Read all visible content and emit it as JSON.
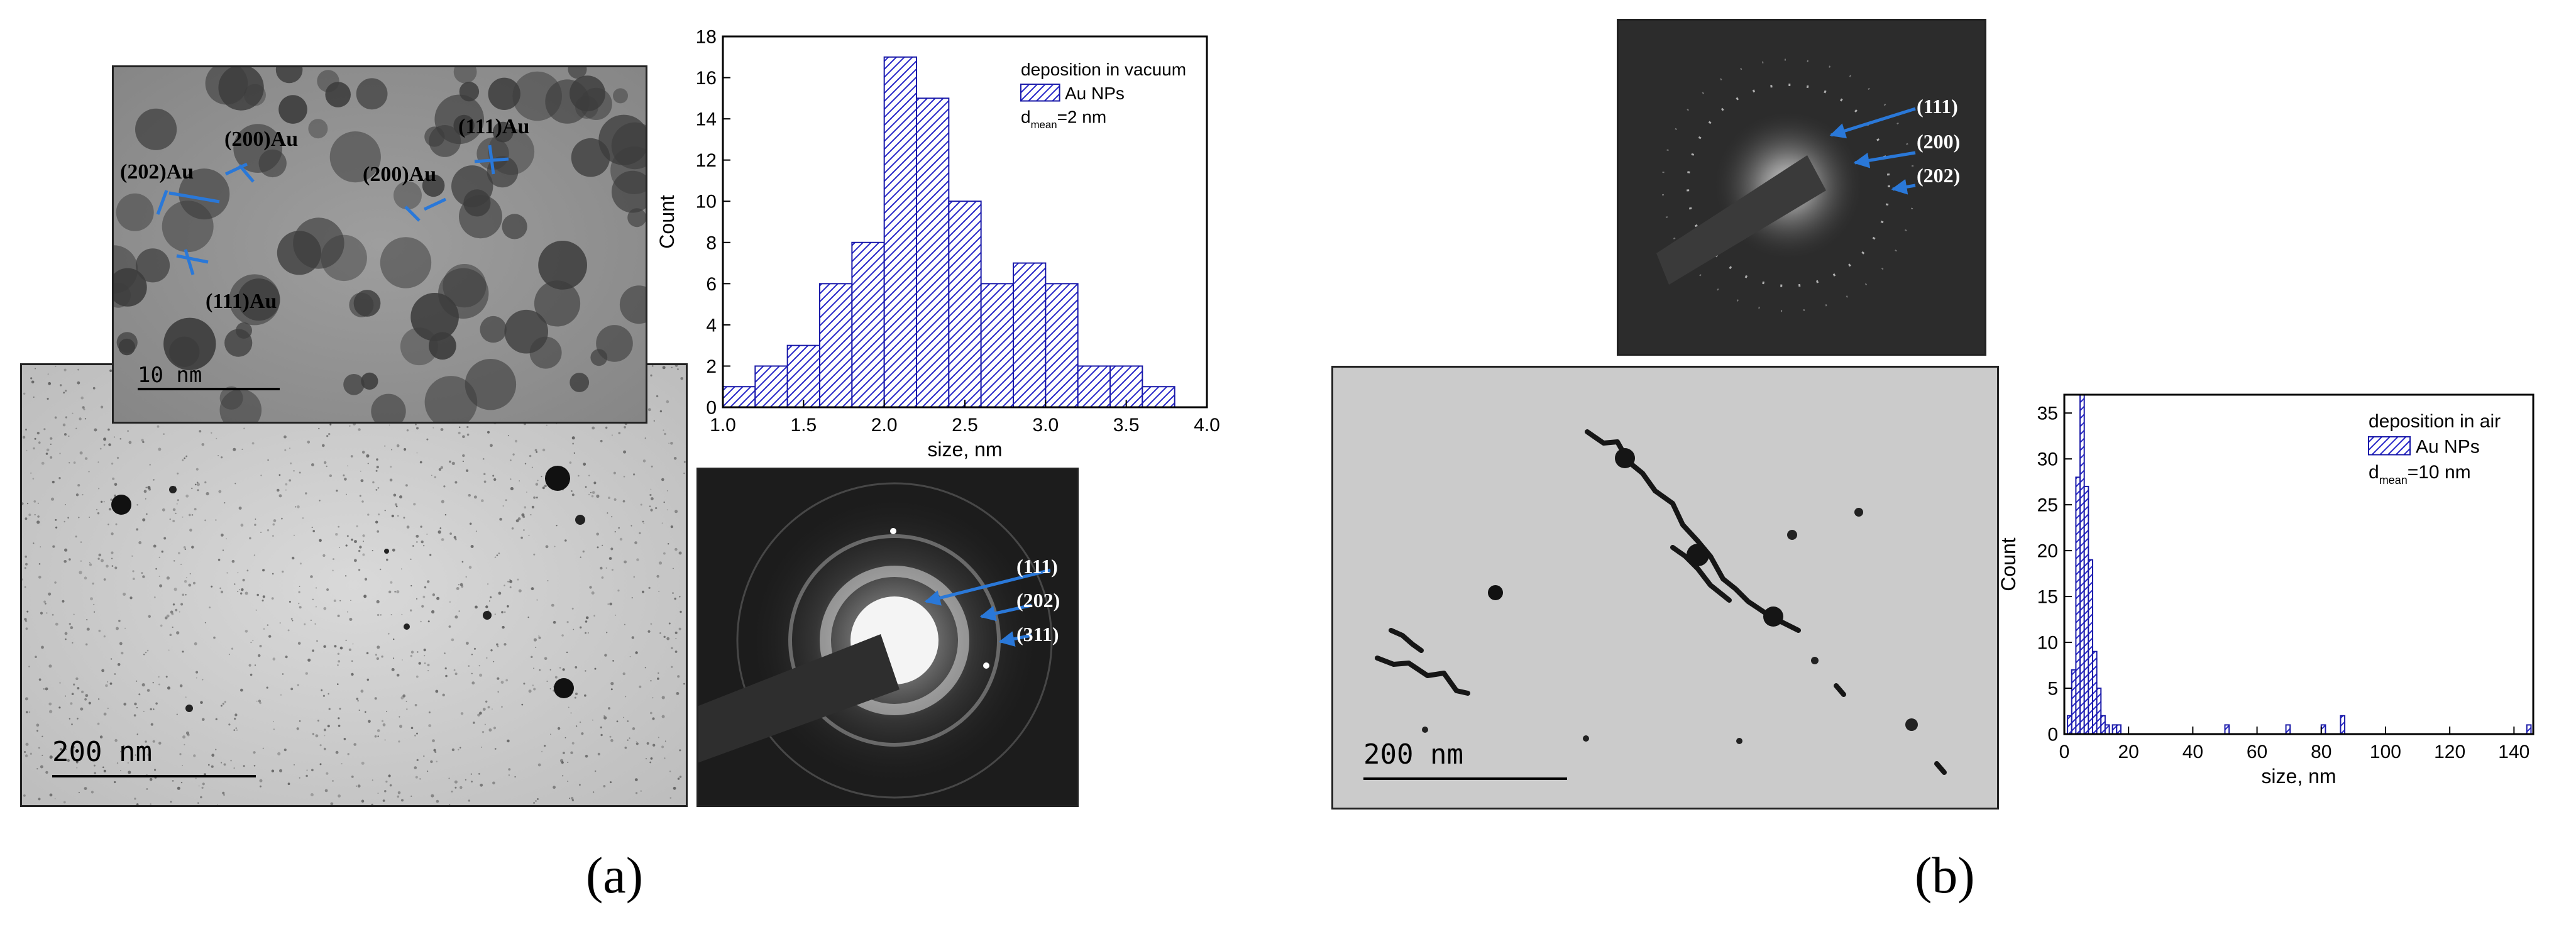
{
  "panel_a": {
    "caption": "(a)",
    "tem_low": {
      "scale_label": "200 nm"
    },
    "hrtem": {
      "scale_label": "10 nm",
      "annotations": [
        "(202)Au",
        "(200)Au",
        "(111)Au",
        "(200)Au",
        "(111)Au"
      ]
    },
    "saed": {
      "rings": [
        "(111)",
        "(202)",
        "(311)"
      ]
    }
  },
  "panel_b": {
    "caption": "(b)",
    "tem": {
      "scale_label": "200 nm"
    },
    "saed": {
      "rings": [
        "(111)",
        "(200)",
        "(202)"
      ]
    }
  },
  "chart_data": [
    {
      "type": "bar",
      "id": "vacuum",
      "legend_title": "deposition in vacuum",
      "legend_entry": "Au NPs",
      "legend_d_main": "d",
      "legend_d_sub": "mean",
      "legend_d_value": "=2 nm",
      "xlabel": "size, nm",
      "ylabel": "Count",
      "xlim": [
        1.0,
        4.0
      ],
      "ylim": [
        0,
        18
      ],
      "xticks": [
        "1.0",
        "1.5",
        "2.0",
        "2.5",
        "3.0",
        "3.5",
        "4.0"
      ],
      "yticks": [
        "0",
        "2",
        "4",
        "6",
        "8",
        "10",
        "12",
        "14",
        "16",
        "18"
      ],
      "bin_width": 0.2,
      "bins": [
        {
          "x": 1.0,
          "count": 1
        },
        {
          "x": 1.2,
          "count": 2
        },
        {
          "x": 1.4,
          "count": 3
        },
        {
          "x": 1.6,
          "count": 6
        },
        {
          "x": 1.8,
          "count": 8
        },
        {
          "x": 2.0,
          "count": 17
        },
        {
          "x": 2.2,
          "count": 15
        },
        {
          "x": 2.4,
          "count": 10
        },
        {
          "x": 2.6,
          "count": 6
        },
        {
          "x": 2.8,
          "count": 7
        },
        {
          "x": 3.0,
          "count": 6
        },
        {
          "x": 3.2,
          "count": 2
        },
        {
          "x": 3.4,
          "count": 2
        },
        {
          "x": 3.6,
          "count": 1
        }
      ]
    },
    {
      "type": "bar",
      "id": "air",
      "legend_title": "deposition in air",
      "legend_entry": "Au NPs",
      "legend_d_main": "d",
      "legend_d_sub": "mean",
      "legend_d_value": "=10 nm",
      "xlabel": "size, nm",
      "ylabel": "Count",
      "xlim": [
        0,
        146
      ],
      "ylim": [
        0,
        37
      ],
      "xticks": [
        "0",
        "20",
        "40",
        "60",
        "80",
        "100",
        "120",
        "140"
      ],
      "yticks": [
        "0",
        "5",
        "10",
        "15",
        "20",
        "25",
        "30",
        "35"
      ],
      "bin_width": 1.3,
      "bins": [
        {
          "x": 1,
          "count": 2
        },
        {
          "x": 2.3,
          "count": 7
        },
        {
          "x": 3.6,
          "count": 28
        },
        {
          "x": 4.9,
          "count": 37
        },
        {
          "x": 6.2,
          "count": 27
        },
        {
          "x": 7.5,
          "count": 19
        },
        {
          "x": 8.8,
          "count": 9
        },
        {
          "x": 10.1,
          "count": 5
        },
        {
          "x": 11.4,
          "count": 2
        },
        {
          "x": 12.7,
          "count": 1
        },
        {
          "x": 15,
          "count": 1
        },
        {
          "x": 16.3,
          "count": 1
        },
        {
          "x": 50,
          "count": 1
        },
        {
          "x": 69,
          "count": 1
        },
        {
          "x": 80,
          "count": 1
        },
        {
          "x": 86,
          "count": 2
        },
        {
          "x": 144,
          "count": 1
        }
      ]
    }
  ]
}
